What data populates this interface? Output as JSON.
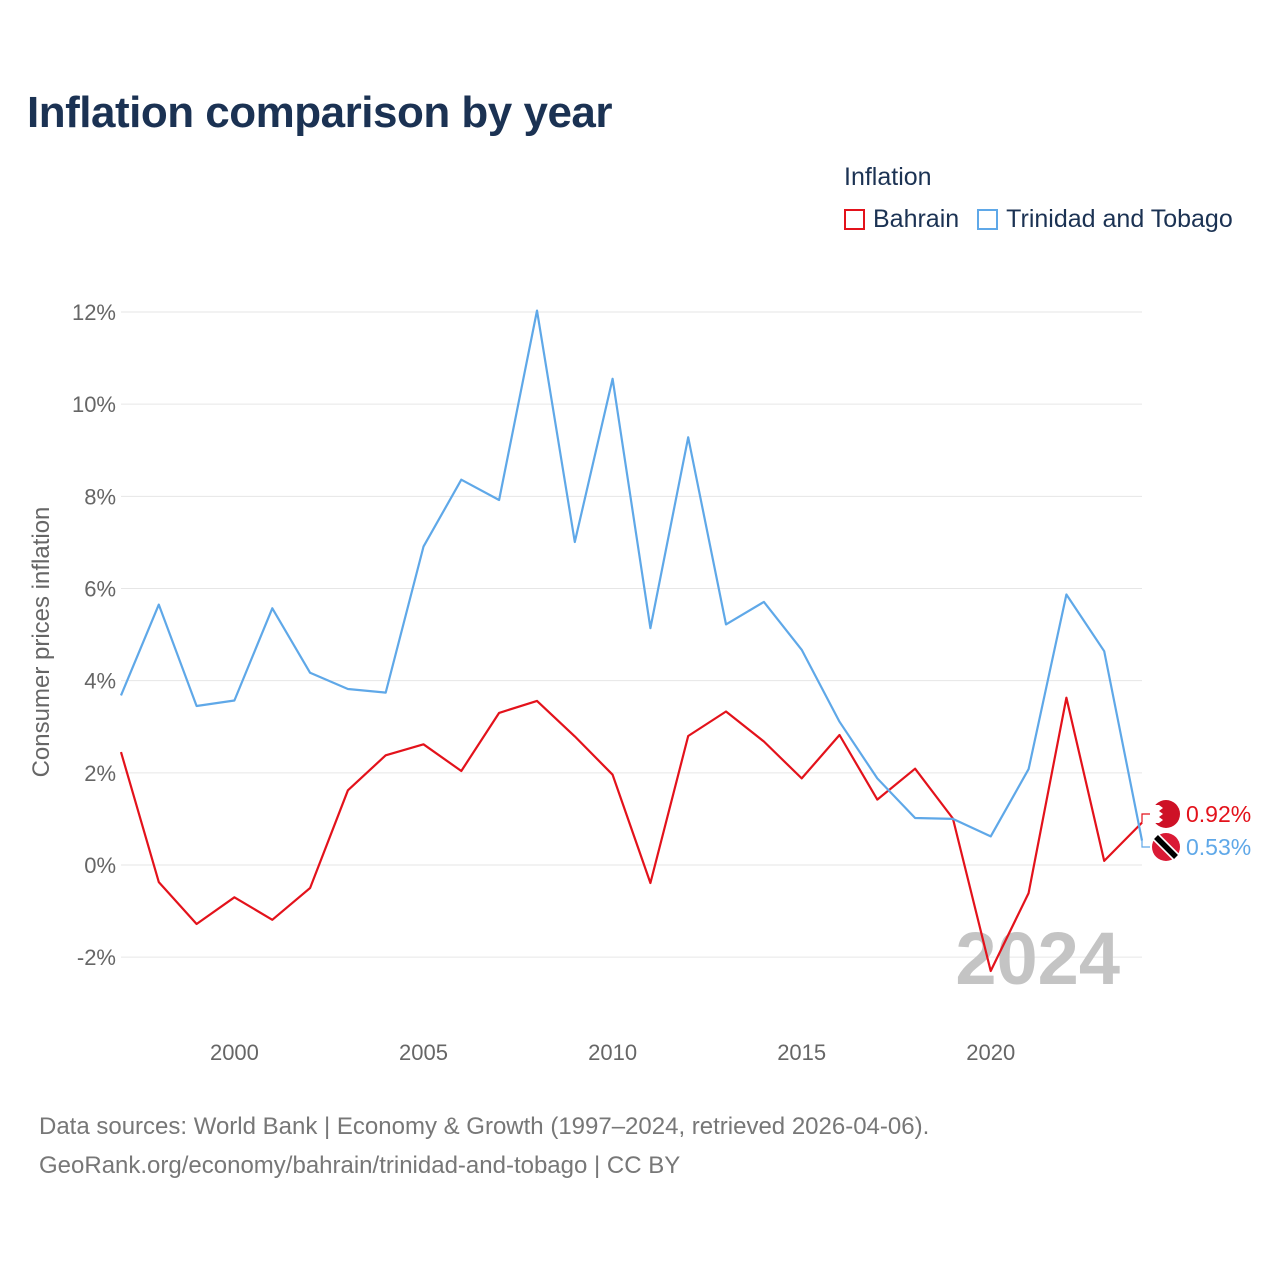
{
  "title": "Inflation comparison by year",
  "legend": {
    "title": "Inflation",
    "items": [
      {
        "label": "Bahrain",
        "color": "#e3121b"
      },
      {
        "label": "Trinidad and Tobago",
        "color": "#5fa8e8"
      }
    ]
  },
  "source": {
    "line1": "Data sources: World Bank | Economy & Growth (1997–2024, retrieved 2026-04-06).",
    "line2": "GeoRank.org/economy/bahrain/trinidad-and-tobago | CC BY"
  },
  "chart_data": {
    "type": "line",
    "title": "Inflation comparison by year",
    "xlabel": "",
    "ylabel": "Consumer prices inflation",
    "x": [
      1997,
      1998,
      1999,
      2000,
      2001,
      2002,
      2003,
      2004,
      2005,
      2006,
      2007,
      2008,
      2009,
      2010,
      2011,
      2012,
      2013,
      2014,
      2015,
      2016,
      2017,
      2018,
      2019,
      2020,
      2021,
      2022,
      2023,
      2024
    ],
    "xlim": [
      1997,
      2024
    ],
    "ylim": [
      -2.5,
      12.5
    ],
    "x_ticks": [
      2000,
      2005,
      2010,
      2015,
      2020
    ],
    "x_tick_labels": [
      "2000",
      "2005",
      "2010",
      "2015",
      "2020"
    ],
    "y_ticks": [
      -2,
      0,
      2,
      4,
      6,
      8,
      10,
      12
    ],
    "y_tick_labels": [
      "-2%",
      "0%",
      "2%",
      "4%",
      "6%",
      "8%",
      "10%",
      "12%"
    ],
    "grid": true,
    "year_label": "2024",
    "series": [
      {
        "name": "Bahrain",
        "color": "#e3121b",
        "end_label": "0.92%",
        "flag_icon": "bahrain-flag-icon",
        "values": [
          2.45,
          -0.37,
          -1.28,
          -0.7,
          -1.19,
          -0.5,
          1.62,
          2.38,
          2.62,
          2.04,
          3.3,
          3.56,
          2.79,
          1.96,
          -0.39,
          2.8,
          3.33,
          2.68,
          1.88,
          2.82,
          1.42,
          2.09,
          1.01,
          -2.3,
          -0.61,
          3.63,
          0.09,
          0.92
        ]
      },
      {
        "name": "Trinidad and Tobago",
        "color": "#5fa8e8",
        "end_label": "0.53%",
        "flag_icon": "trinidad-and-tobago-flag-icon",
        "values": [
          3.68,
          5.65,
          3.45,
          3.57,
          5.57,
          4.17,
          3.82,
          3.74,
          6.91,
          8.36,
          7.92,
          12.03,
          7.01,
          10.55,
          5.14,
          9.28,
          5.22,
          5.71,
          4.67,
          3.11,
          1.88,
          1.02,
          1.0,
          0.62,
          2.08,
          5.87,
          4.64,
          0.53
        ]
      }
    ]
  }
}
